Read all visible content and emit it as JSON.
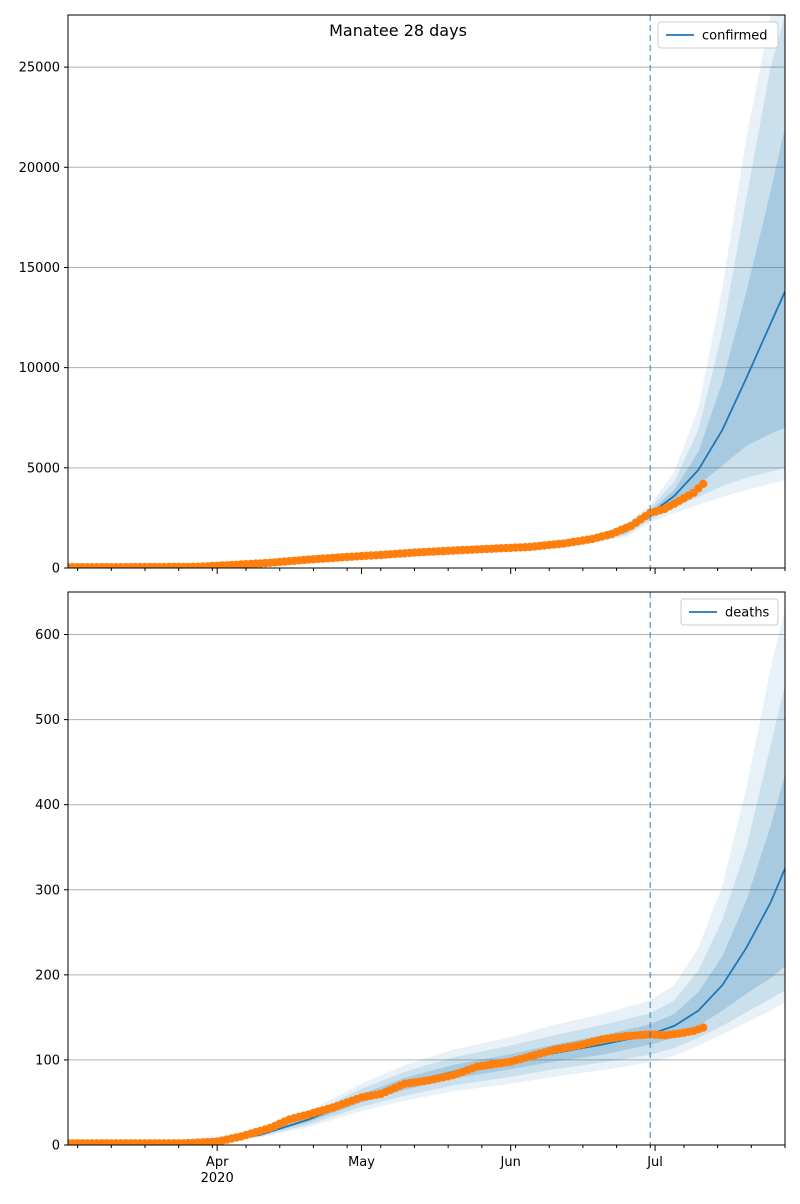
{
  "chart_data": {
    "type": "line",
    "title": "Manatee 28 days",
    "x_axis": {
      "type": "date",
      "range": [
        "2020-03-01",
        "2020-07-28"
      ],
      "major_ticks": [
        {
          "date": "2020-04-01",
          "label": "Apr",
          "sublabel": "2020"
        },
        {
          "date": "2020-05-01",
          "label": "May",
          "sublabel": ""
        },
        {
          "date": "2020-06-01",
          "label": "Jun",
          "sublabel": ""
        },
        {
          "date": "2020-07-01",
          "label": "Jul",
          "sublabel": ""
        }
      ],
      "shared": true
    },
    "forecast_start": "2020-06-30",
    "colors": {
      "model": "#1f77b4",
      "observed": "#ff7f0e",
      "band": "#1f77b4",
      "grid": "#b0b0b0",
      "vline": "#1f77b4"
    },
    "panels": [
      {
        "legend": "confirmed",
        "legend_position": "top-right",
        "ylim": [
          0,
          27600
        ],
        "yticks": [
          0,
          5000,
          10000,
          15000,
          20000,
          25000
        ],
        "grid": "horizontal",
        "model": {
          "dates": [
            "2020-03-01",
            "2020-03-15",
            "2020-03-25",
            "2020-04-01",
            "2020-04-10",
            "2020-04-20",
            "2020-05-01",
            "2020-05-10",
            "2020-05-20",
            "2020-06-01",
            "2020-06-10",
            "2020-06-20",
            "2020-06-25",
            "2020-06-30",
            "2020-07-05",
            "2020-07-10",
            "2020-07-15",
            "2020-07-20",
            "2020-07-25",
            "2020-07-28"
          ],
          "median": [
            20,
            30,
            45,
            80,
            180,
            320,
            520,
            680,
            820,
            980,
            1150,
            1500,
            1850,
            2700,
            3600,
            4900,
            6900,
            9500,
            12200,
            13800
          ],
          "bands": [
            {
              "lower": [
                20,
                30,
                45,
                80,
                180,
                320,
                520,
                680,
                820,
                980,
                1150,
                1450,
                1750,
                2550,
                3300,
                4150,
                5100,
                6100,
                6700,
                7000
              ],
              "upper": [
                20,
                30,
                45,
                80,
                180,
                320,
                520,
                680,
                820,
                980,
                1150,
                1550,
                1950,
                2850,
                3900,
                5800,
                9300,
                13800,
                18800,
                22000
              ]
            },
            {
              "lower": [
                20,
                30,
                45,
                80,
                180,
                320,
                520,
                680,
                820,
                980,
                1150,
                1380,
                1650,
                2400,
                3000,
                3550,
                4100,
                4500,
                4800,
                5000
              ],
              "upper": [
                20,
                30,
                45,
                80,
                180,
                320,
                520,
                680,
                820,
                980,
                1150,
                1650,
                2100,
                3000,
                4300,
                6900,
                11800,
                18500,
                25000,
                27600
              ]
            },
            {
              "lower": [
                20,
                30,
                45,
                80,
                180,
                320,
                520,
                680,
                820,
                980,
                1150,
                1320,
                1550,
                2250,
                2750,
                3150,
                3550,
                3900,
                4200,
                4350
              ],
              "upper": [
                20,
                30,
                45,
                80,
                180,
                320,
                520,
                680,
                820,
                980,
                1150,
                1750,
                2250,
                3150,
                4800,
                8000,
                14000,
                21500,
                27600,
                27600
              ]
            }
          ]
        },
        "observed": {
          "dates": [
            "2020-03-01",
            "2020-03-10",
            "2020-03-20",
            "2020-03-28",
            "2020-04-05",
            "2020-04-12",
            "2020-04-20",
            "2020-04-28",
            "2020-05-05",
            "2020-05-12",
            "2020-05-20",
            "2020-05-28",
            "2020-06-05",
            "2020-06-12",
            "2020-06-18",
            "2020-06-22",
            "2020-06-26",
            "2020-06-30",
            "2020-07-03",
            "2020-07-06",
            "2020-07-09",
            "2020-07-11"
          ],
          "values": [
            40,
            40,
            45,
            60,
            160,
            260,
            420,
            550,
            650,
            770,
            870,
            960,
            1050,
            1220,
            1450,
            1700,
            2100,
            2750,
            2950,
            3350,
            3750,
            4200
          ]
        }
      },
      {
        "legend": "deaths",
        "legend_position": "top-right",
        "ylim": [
          0,
          650
        ],
        "yticks": [
          0,
          100,
          200,
          300,
          400,
          500,
          600
        ],
        "grid": "horizontal",
        "model": {
          "dates": [
            "2020-03-01",
            "2020-03-20",
            "2020-04-01",
            "2020-04-10",
            "2020-04-20",
            "2020-05-01",
            "2020-05-10",
            "2020-05-20",
            "2020-06-01",
            "2020-06-10",
            "2020-06-20",
            "2020-06-30",
            "2020-07-05",
            "2020-07-10",
            "2020-07-15",
            "2020-07-20",
            "2020-07-25",
            "2020-07-28"
          ],
          "median": [
            2,
            2,
            4,
            12,
            30,
            55,
            72,
            86,
            98,
            108,
            118,
            130,
            140,
            158,
            188,
            232,
            285,
            325
          ],
          "bands": [
            {
              "lower": [
                2,
                2,
                4,
                11,
                27,
                50,
                65,
                78,
                89,
                98,
                106,
                118,
                126,
                140,
                158,
                178,
                196,
                210
              ],
              "upper": [
                2,
                2,
                4,
                13,
                33,
                60,
                79,
                94,
                107,
                118,
                129,
                142,
                154,
                180,
                222,
                288,
                375,
                435
              ]
            },
            {
              "lower": [
                2,
                2,
                4,
                10,
                24,
                45,
                58,
                70,
                80,
                89,
                97,
                106,
                114,
                126,
                140,
                156,
                172,
                182
              ],
              "upper": [
                2,
                2,
                4,
                14,
                36,
                66,
                86,
                103,
                117,
                129,
                141,
                155,
                170,
                205,
                265,
                350,
                470,
                540
              ]
            },
            {
              "lower": [
                2,
                2,
                4,
                9,
                21,
                40,
                52,
                63,
                72,
                80,
                88,
                97,
                105,
                117,
                130,
                144,
                158,
                168
              ],
              "upper": [
                2,
                2,
                4,
                15,
                40,
                72,
                94,
                112,
                127,
                141,
                154,
                170,
                188,
                232,
                305,
                420,
                560,
                630
              ]
            }
          ]
        },
        "observed": {
          "dates": [
            "2020-03-01",
            "2020-03-15",
            "2020-03-25",
            "2020-04-01",
            "2020-04-06",
            "2020-04-12",
            "2020-04-16",
            "2020-04-20",
            "2020-04-25",
            "2020-05-01",
            "2020-05-05",
            "2020-05-10",
            "2020-05-15",
            "2020-05-20",
            "2020-05-25",
            "2020-06-01",
            "2020-06-05",
            "2020-06-10",
            "2020-06-15",
            "2020-06-20",
            "2020-06-25",
            "2020-06-30",
            "2020-07-03",
            "2020-07-06",
            "2020-07-09",
            "2020-07-11"
          ],
          "values": [
            2,
            2,
            2,
            4,
            10,
            20,
            30,
            36,
            44,
            56,
            60,
            72,
            76,
            82,
            92,
            98,
            104,
            112,
            117,
            124,
            128,
            130,
            129,
            131,
            134,
            138
          ]
        }
      }
    ]
  }
}
